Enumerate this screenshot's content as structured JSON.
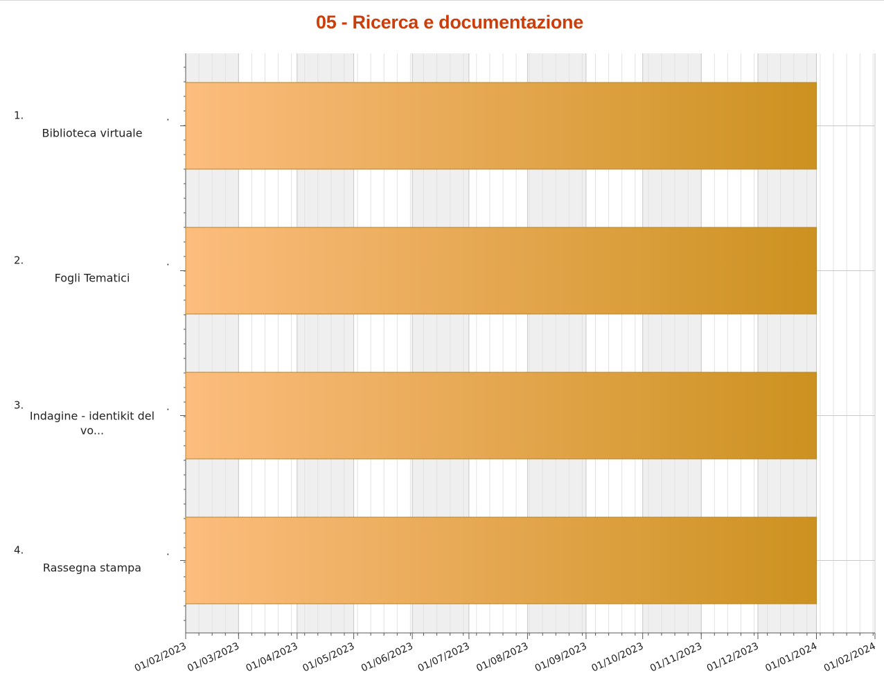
{
  "chart_data": {
    "type": "gantt",
    "title": "05 - Ricerca e documentazione",
    "x_axis": {
      "type": "date",
      "min": "2023-02-01",
      "max": "2024-02-01",
      "tick_labels": [
        "01/02/2023",
        "01/03/2023",
        "01/04/2023",
        "01/05/2023",
        "01/06/2023",
        "01/07/2023",
        "01/08/2023",
        "01/09/2023",
        "01/10/2023",
        "01/11/2023",
        "01/12/2023",
        "01/01/2024",
        "01/02/2024"
      ],
      "tick_dates": [
        "2023-02-01",
        "2023-03-01",
        "2023-04-01",
        "2023-05-01",
        "2023-06-01",
        "2023-07-01",
        "2023-08-01",
        "2023-09-01",
        "2023-10-01",
        "2023-11-01",
        "2023-12-01",
        "2024-01-01",
        "2024-02-01"
      ],
      "alternating_month_bands": true,
      "grid": true
    },
    "tasks": [
      {
        "number": "1.",
        "label": "Biblioteca virtuale",
        "start": "2023-02-01",
        "end": "2024-01-01"
      },
      {
        "number": "2.",
        "label": "Fogli Tematici",
        "start": "2023-02-01",
        "end": "2024-01-01"
      },
      {
        "number": "3.",
        "label": "Indagine - identikit del vo...",
        "start": "2023-02-01",
        "end": "2024-01-01"
      },
      {
        "number": "4.",
        "label": "Rassegna stampa",
        "start": "2023-02-01",
        "end": "2024-01-01"
      }
    ],
    "colors": {
      "title": "#cc3d0a",
      "bar_start": "#fcbd7e",
      "bar_end": "#cc9120",
      "bar_border": "#b5842c",
      "band": "#efefef",
      "grid_minor": "#e2e2e2",
      "grid_major": "#c8c8c8",
      "axis": "#555555"
    }
  }
}
